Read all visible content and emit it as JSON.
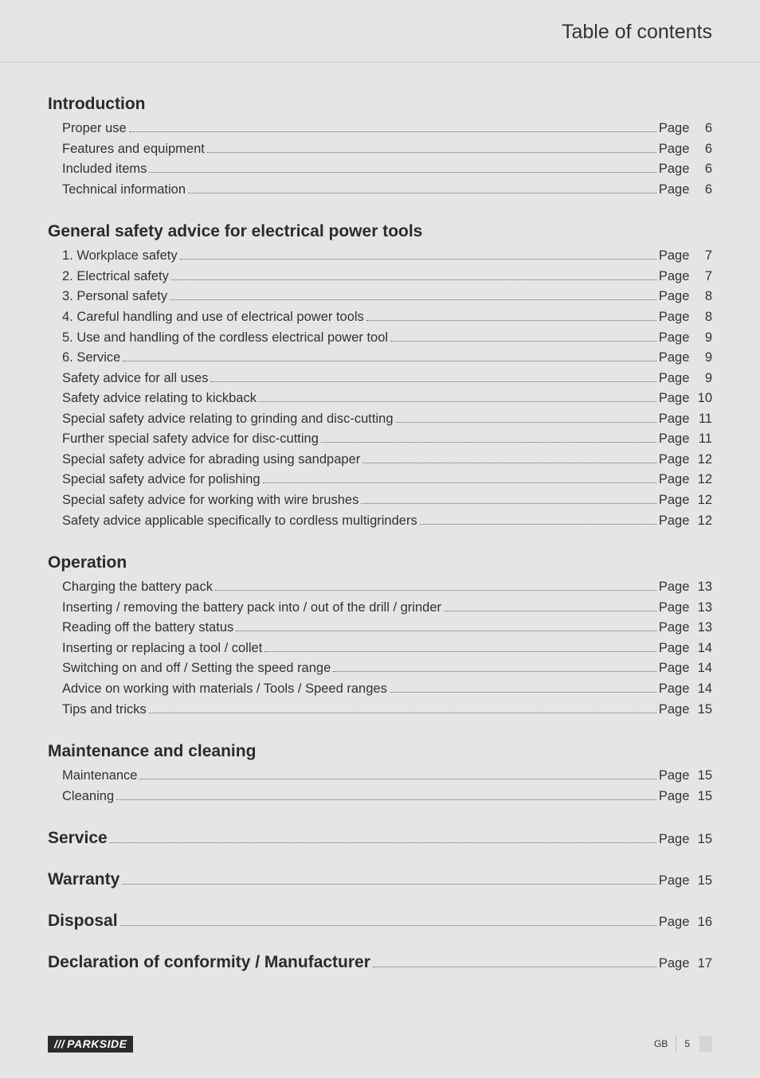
{
  "header": {
    "title": "Table of contents"
  },
  "pageWord": "Page",
  "sections": [
    {
      "heading": "Introduction",
      "inline": false,
      "items": [
        {
          "title": "Proper use",
          "page": 6
        },
        {
          "title": "Features and equipment",
          "page": 6
        },
        {
          "title": "Included items",
          "page": 6
        },
        {
          "title": "Technical information",
          "page": 6
        }
      ]
    },
    {
      "heading": "General safety advice for electrical power tools",
      "inline": false,
      "items": [
        {
          "title": "1. Workplace safety",
          "page": 7
        },
        {
          "title": "2. Electrical safety",
          "page": 7
        },
        {
          "title": "3. Personal safety",
          "page": 8
        },
        {
          "title": "4. Careful handling and use of electrical power tools",
          "page": 8
        },
        {
          "title": "5. Use and handling of the cordless electrical power tool",
          "page": 9
        },
        {
          "title": "6. Service",
          "page": 9
        },
        {
          "title": "Safety advice for all uses",
          "page": 9
        },
        {
          "title": "Safety advice relating to kickback",
          "page": 10
        },
        {
          "title": "Special safety advice relating to grinding and disc-cutting",
          "page": 11
        },
        {
          "title": "Further special safety advice for disc-cutting",
          "page": 11
        },
        {
          "title": "Special safety advice for abrading using sandpaper",
          "page": 12
        },
        {
          "title": "Special safety advice for polishing",
          "page": 12
        },
        {
          "title": "Special safety advice for working with wire brushes",
          "page": 12
        },
        {
          "title": "Safety advice applicable specifically to cordless multigrinders",
          "page": 12
        }
      ]
    },
    {
      "heading": "Operation",
      "inline": false,
      "items": [
        {
          "title": "Charging the battery pack",
          "page": 13
        },
        {
          "title": "Inserting / removing the battery pack into / out of the drill / grinder",
          "page": 13
        },
        {
          "title": "Reading off the battery status",
          "page": 13
        },
        {
          "title": "Inserting or replacing a tool / collet",
          "page": 14
        },
        {
          "title": "Switching on and off / Setting the speed range",
          "page": 14
        },
        {
          "title": "Advice on working with materials / Tools / Speed ranges",
          "page": 14
        },
        {
          "title": "Tips and tricks",
          "page": 15
        }
      ]
    },
    {
      "heading": "Maintenance and cleaning",
      "inline": false,
      "items": [
        {
          "title": "Maintenance",
          "page": 15
        },
        {
          "title": "Cleaning",
          "page": 15
        }
      ]
    },
    {
      "heading": "Service",
      "inline": true,
      "page": 15,
      "items": []
    },
    {
      "heading": "Warranty",
      "inline": true,
      "page": 15,
      "items": []
    },
    {
      "heading": "Disposal",
      "inline": true,
      "page": 16,
      "items": []
    },
    {
      "heading": "Declaration of conformity / Manufacturer",
      "inline": true,
      "page": 17,
      "items": []
    }
  ],
  "footer": {
    "brand": "PARKSIDE",
    "lang": "GB",
    "pageNum": "5"
  },
  "colors": {
    "page_bg": "#e5e5e5",
    "text": "#333333",
    "brand_bg": "#2b2b2b",
    "brand_fg": "#ffffff"
  }
}
